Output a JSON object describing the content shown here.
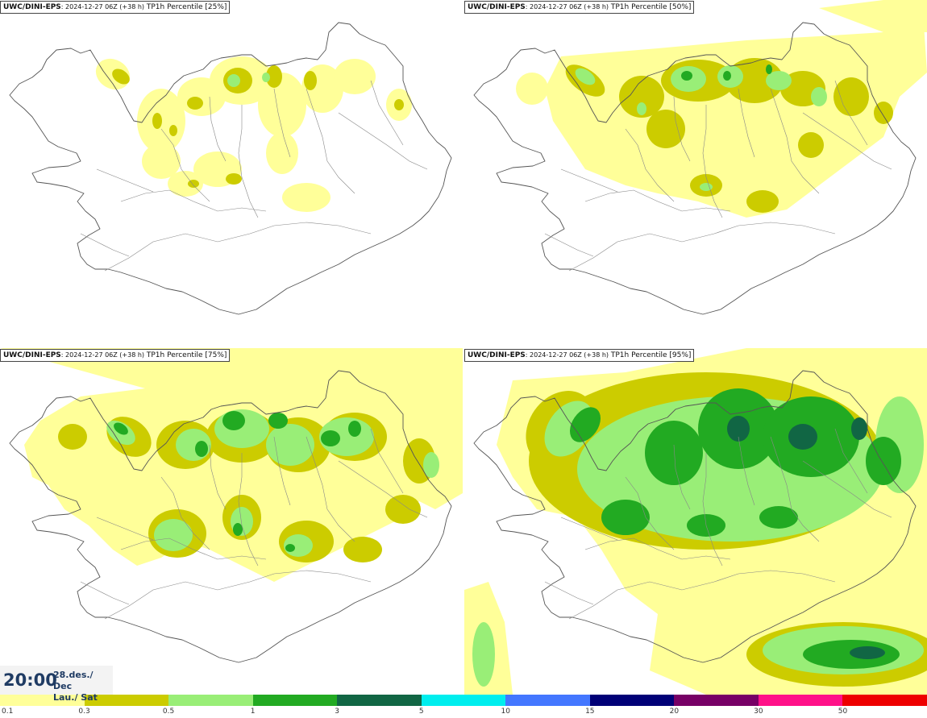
{
  "panels": [
    {
      "model": "UWC/DINI-EPS",
      "run": ": 2024-12-27 06Z (+38 h)",
      "variable": " TP1h Percentile [25%]"
    },
    {
      "model": "UWC/DINI-EPS",
      "run": ": 2024-12-27 06Z (+38 h)",
      "variable": " TP1h Percentile [50%]"
    },
    {
      "model": "UWC/DINI-EPS",
      "run": ": 2024-12-27 06Z (+38 h)",
      "variable": " TP1h Percentile [75%]"
    },
    {
      "model": "UWC/DINI-EPS",
      "run": ": 2024-12-27 06Z (+38 h)",
      "variable": " TP1h Percentile [95%]"
    }
  ],
  "valid_time": {
    "time": "20:00",
    "date_line1": "28.des./ Dec",
    "date_line2": "Lau./ Sat"
  },
  "legend": {
    "colors": [
      "#ffff99",
      "#cccc00",
      "#99ee77",
      "#22aa22",
      "#116644",
      "#00eeee",
      "#4477ff",
      "#000077",
      "#770066",
      "#ff1188",
      "#ee0000"
    ],
    "labels": [
      "0.1",
      "0.3",
      "0.5",
      "1",
      "3",
      "5",
      "10",
      "15",
      "20",
      "30",
      "50"
    ]
  }
}
